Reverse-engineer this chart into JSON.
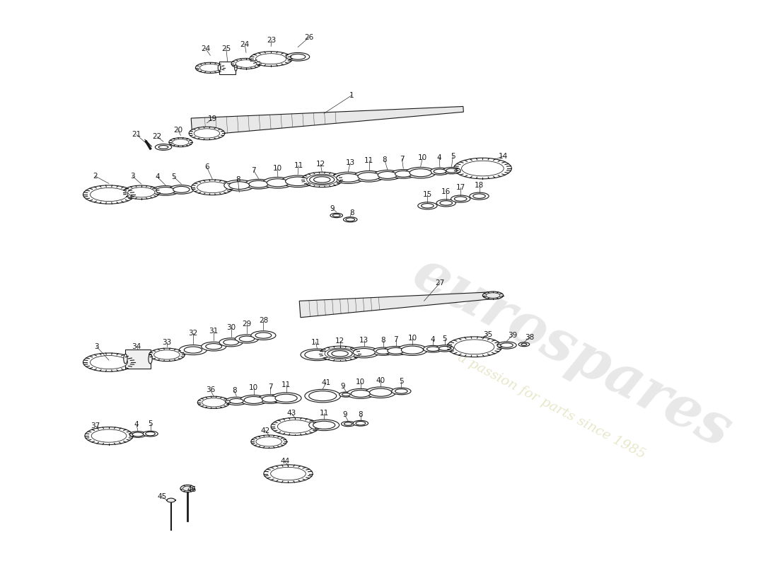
{
  "background_color": "#ffffff",
  "line_color": "#1a1a1a",
  "watermark1": "eurospares",
  "watermark2": "a passion for parts since 1985",
  "wm_color1": "#c0c0c0",
  "wm_color2": "#d4d4a0",
  "fig_width": 11.0,
  "fig_height": 8.0,
  "dpi": 100
}
